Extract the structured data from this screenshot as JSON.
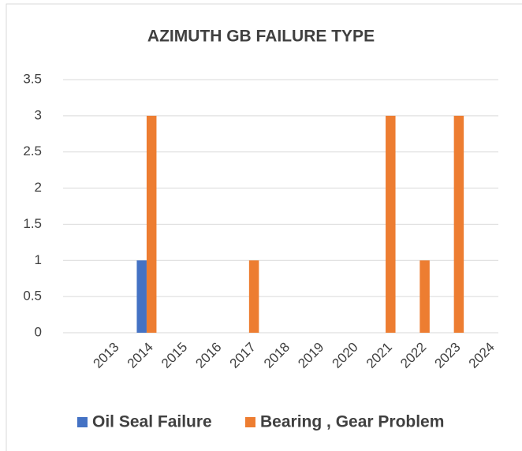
{
  "chart_data": {
    "type": "bar",
    "title": "AZIMUTH GB FAILURE TYPE",
    "categories": [
      "2013",
      "2014",
      "2015",
      "2016",
      "2017",
      "2018",
      "2019",
      "2020",
      "2021",
      "2022",
      "2023",
      "2024"
    ],
    "series": [
      {
        "name": "Oil Seal Failure",
        "color": "#4472c4",
        "values": [
          0,
          1,
          0,
          0,
          0,
          0,
          0,
          0,
          0,
          0,
          0,
          0
        ]
      },
      {
        "name": "Bearing , Gear Problem",
        "color": "#ed7d31",
        "values": [
          0,
          3,
          0,
          0,
          1,
          0,
          0,
          0,
          3,
          1,
          3,
          0
        ]
      }
    ],
    "ylim": [
      0,
      3.5
    ],
    "yticks": [
      0,
      0.5,
      1,
      1.5,
      2,
      2.5,
      3,
      3.5
    ],
    "grid": true,
    "legend": "bottom"
  }
}
